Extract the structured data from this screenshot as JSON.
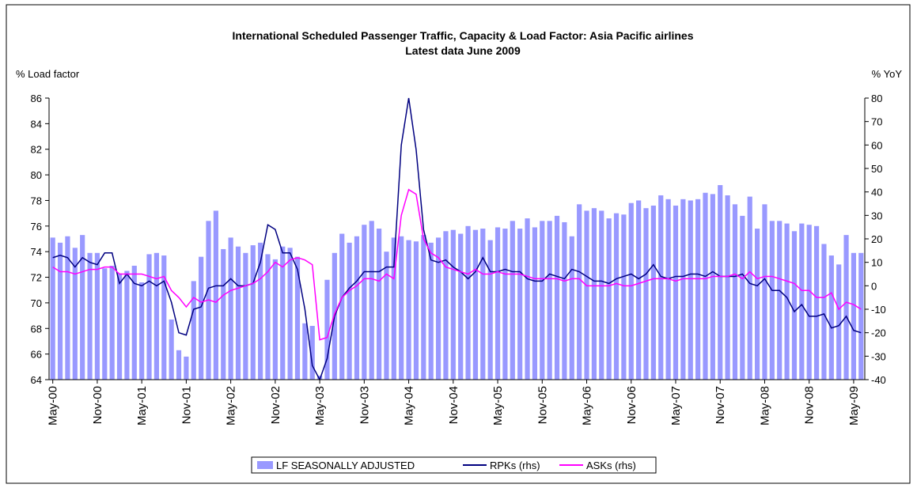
{
  "chart_data": {
    "type": "bar",
    "title": "International Scheduled Passenger Traffic, Capacity & Load Factor: Asia Pacific airlines",
    "subtitle": "Latest data June 2009",
    "y_label": "% Load factor",
    "y2_label": "% YoY",
    "categories": [
      "May-00",
      null,
      null,
      null,
      null,
      null,
      "Nov-00",
      null,
      null,
      null,
      null,
      null,
      "May-01",
      null,
      null,
      null,
      null,
      null,
      "Nov-01",
      null,
      null,
      null,
      null,
      null,
      "May-02",
      null,
      null,
      null,
      null,
      null,
      "Nov-02",
      null,
      null,
      null,
      null,
      null,
      "May-03",
      null,
      null,
      null,
      null,
      null,
      "Nov-03",
      null,
      null,
      null,
      null,
      null,
      "May-04",
      null,
      null,
      null,
      null,
      null,
      "Nov-04",
      null,
      null,
      null,
      null,
      null,
      "May-05",
      null,
      null,
      null,
      null,
      null,
      "Nov-05",
      null,
      null,
      null,
      null,
      null,
      "May-06",
      null,
      null,
      null,
      null,
      null,
      "Nov-06",
      null,
      null,
      null,
      null,
      null,
      "May-07",
      null,
      null,
      null,
      null,
      null,
      "Nov-07",
      null,
      null,
      null,
      null,
      null,
      "May-08",
      null,
      null,
      null,
      null,
      null,
      "Nov-08",
      null,
      null,
      null,
      null,
      null,
      "May-09",
      null
    ],
    "series": [
      {
        "name": "LF SEASONALLY ADJUSTED",
        "type": "bar",
        "axis": "y",
        "color": "#9999ff",
        "values": [
          75.1,
          74.7,
          75.2,
          74.3,
          75.3,
          73.9,
          73.9,
          72.7,
          72.9,
          72.3,
          72.5,
          72.9,
          71.6,
          73.8,
          73.9,
          73.7,
          68.7,
          66.3,
          65.8,
          71.7,
          73.6,
          76.4,
          77.2,
          74.2,
          75.1,
          74.4,
          73.9,
          74.5,
          74.7,
          73.8,
          73.4,
          74.4,
          74.3,
          73.6,
          68.4,
          68.2,
          64.3,
          71.8,
          73.9,
          75.4,
          74.7,
          75.2,
          76.1,
          76.4,
          75.8,
          74.0,
          75.1,
          75.2,
          74.9,
          74.8,
          75.3,
          74.7,
          75.1,
          75.6,
          75.7,
          75.4,
          76.0,
          75.7,
          75.8,
          74.9,
          75.9,
          75.8,
          76.4,
          75.8,
          76.6,
          75.9,
          76.4,
          76.4,
          76.8,
          76.3,
          75.2,
          77.7,
          77.2,
          77.4,
          77.2,
          76.6,
          77.0,
          76.9,
          77.8,
          78.0,
          77.4,
          77.6,
          78.4,
          78.1,
          77.6,
          78.1,
          78.0,
          78.1,
          78.6,
          78.5,
          79.2,
          78.4,
          77.7,
          76.8,
          78.3,
          75.8,
          77.7,
          76.4,
          76.4,
          76.2,
          75.6,
          76.2,
          76.1,
          76.0,
          74.6,
          73.7,
          73.0,
          75.3,
          73.9,
          73.9
        ]
      },
      {
        "name": "RPKs (rhs)",
        "type": "line",
        "axis": "y2",
        "color": "#000080",
        "values": [
          12,
          13,
          12,
          8,
          12,
          10,
          9,
          14,
          14,
          1,
          5,
          1,
          0,
          2,
          0,
          2,
          -7,
          -20,
          -21,
          -10,
          -9,
          -1,
          0,
          0,
          3,
          0,
          0,
          1,
          10,
          26,
          24,
          14,
          14,
          7,
          -10,
          -34,
          -40,
          -31,
          -13,
          -5,
          -1,
          2,
          6,
          6,
          6,
          8,
          8,
          60,
          80,
          58,
          24,
          11,
          10,
          11,
          8,
          6,
          3,
          6,
          12,
          6,
          6,
          7,
          6,
          6,
          3,
          2,
          2,
          5,
          4,
          3,
          7,
          6,
          4,
          2,
          2,
          1,
          3,
          4,
          5,
          3,
          5,
          9,
          4,
          3,
          4,
          4,
          5,
          5,
          4,
          6,
          4,
          4,
          4,
          5,
          1,
          0,
          3,
          -2,
          -2,
          -5,
          -11,
          -8,
          -13,
          -13,
          -12,
          -18,
          -17,
          -13,
          -19,
          -20
        ]
      },
      {
        "name": "ASKs (rhs)",
        "type": "line",
        "axis": "y2",
        "color": "#ff00ff",
        "values": [
          8,
          6,
          6,
          5,
          6,
          7,
          7,
          8,
          8,
          5,
          5,
          5,
          5,
          4,
          3,
          4,
          -2,
          -5,
          -9,
          -5,
          -7,
          -6,
          -7,
          -4,
          -2,
          -1,
          0,
          1,
          3,
          6,
          10,
          8,
          11,
          12,
          11,
          9,
          -23,
          -22,
          -12,
          -5,
          -2,
          0,
          3,
          3,
          2,
          5,
          3,
          30,
          41,
          39,
          20,
          14,
          12,
          8,
          7,
          6,
          5,
          7,
          5,
          5,
          6,
          5,
          5,
          5,
          4,
          3,
          3,
          3,
          3,
          2,
          3,
          3,
          0,
          0,
          0,
          0,
          1,
          0,
          0,
          1,
          2,
          3,
          3,
          3,
          2,
          3,
          3,
          3,
          3,
          4,
          4,
          4,
          5,
          3,
          6,
          3,
          4,
          4,
          3,
          2,
          1,
          -2,
          -2,
          -5,
          -5,
          -3,
          -10,
          -7,
          -8,
          -10
        ]
      }
    ],
    "ylim": [
      64,
      86
    ],
    "yticks": [
      64,
      66,
      68,
      70,
      72,
      74,
      76,
      78,
      80,
      82,
      84,
      86
    ],
    "y2lim": [
      -40,
      80
    ],
    "y2ticks": [
      -40,
      -30,
      -20,
      -10,
      0,
      10,
      20,
      30,
      40,
      50,
      60,
      70,
      80
    ],
    "grid": false,
    "legend": "bottom"
  }
}
